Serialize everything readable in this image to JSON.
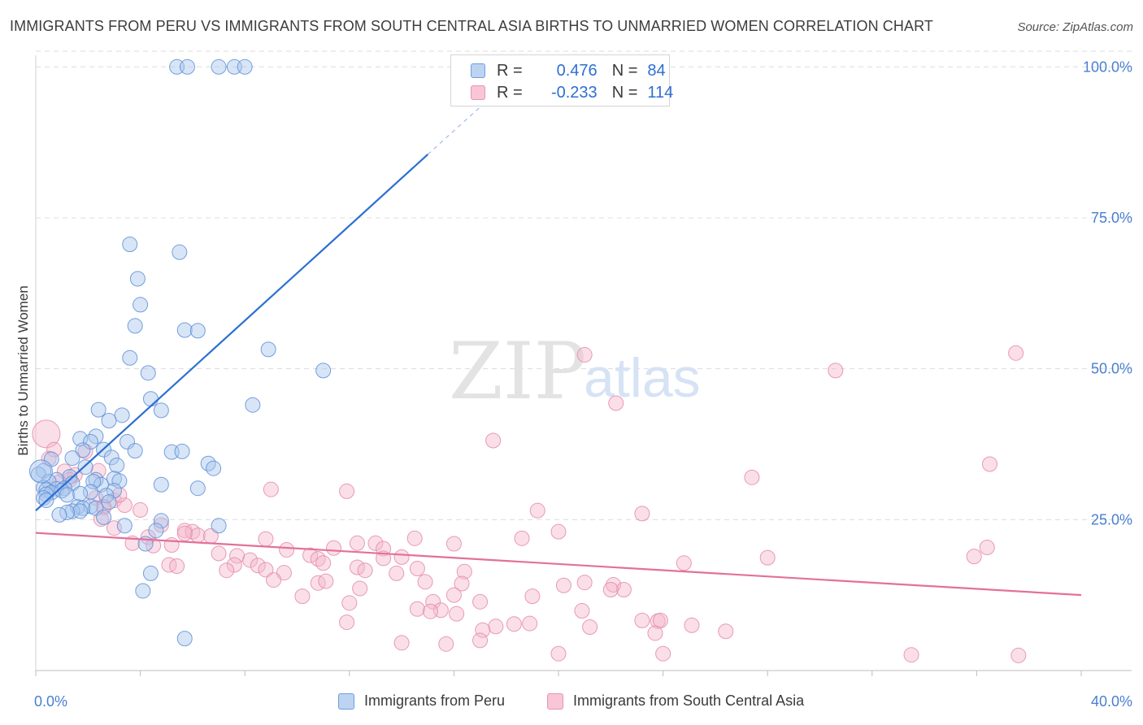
{
  "title": "IMMIGRANTS FROM PERU VS IMMIGRANTS FROM SOUTH CENTRAL ASIA BIRTHS TO UNMARRIED WOMEN CORRELATION CHART",
  "source": "Source: ZipAtlas.com",
  "watermark": {
    "zip": "ZIP",
    "atlas": "atlas"
  },
  "legend": {
    "r_label": "R =",
    "n_label": "N =",
    "peru": {
      "r": "0.476",
      "n": "84"
    },
    "sca": {
      "r": "-0.233",
      "n": "114"
    }
  },
  "colors": {
    "blue_fill": "#a9c6ee",
    "blue_stroke": "#5d8fd6",
    "blue_line": "#2a6fd2",
    "pink_fill": "#f5b7cb",
    "pink_stroke": "#e58aab",
    "pink_line": "#e4709a",
    "axis_text": "#4a7fd0",
    "grid": "#dcdcdc"
  },
  "chart_data": {
    "type": "scatter",
    "title": "IMMIGRANTS FROM PERU VS IMMIGRANTS FROM SOUTH CENTRAL ASIA BIRTHS TO UNMARRIED WOMEN CORRELATION CHART",
    "xlabel": "",
    "ylabel": "Births to Unmarried Women",
    "xlim": [
      0,
      40
    ],
    "ylim": [
      0,
      103
    ],
    "x_tick_labels": [
      "0.0%",
      "40.0%"
    ],
    "y_ticks": [
      25,
      50,
      75,
      100
    ],
    "y_tick_labels": [
      "25.0%",
      "50.0%",
      "75.0%",
      "100.0%"
    ],
    "grid": true,
    "legend_position": "top-center",
    "series": [
      {
        "name": "Immigrants from Peru",
        "color": "blue",
        "r": 0.476,
        "n": 84,
        "trend": {
          "x0": 0,
          "y0": 26.5,
          "x1": 15,
          "y1": 85.5,
          "dash_to_x": 17.5,
          "dash_to_y": 95.3
        },
        "points": [
          [
            5.4,
            100
          ],
          [
            5.8,
            100
          ],
          [
            7.0,
            100
          ],
          [
            7.6,
            100
          ],
          [
            8.0,
            100
          ],
          [
            3.6,
            70.6
          ],
          [
            5.5,
            69.3
          ],
          [
            3.9,
            64.9
          ],
          [
            4.0,
            60.6
          ],
          [
            3.8,
            57.1
          ],
          [
            5.7,
            56.4
          ],
          [
            6.2,
            56.3
          ],
          [
            8.9,
            53.2
          ],
          [
            3.6,
            51.8
          ],
          [
            4.3,
            49.3
          ],
          [
            11.0,
            49.7
          ],
          [
            4.4,
            45.0
          ],
          [
            8.3,
            44.0
          ],
          [
            4.8,
            43.1
          ],
          [
            2.4,
            43.2
          ],
          [
            3.3,
            42.3
          ],
          [
            2.8,
            41.4
          ],
          [
            1.7,
            38.4
          ],
          [
            2.3,
            38.8
          ],
          [
            2.1,
            37.9
          ],
          [
            3.5,
            37.9
          ],
          [
            3.8,
            36.4
          ],
          [
            5.2,
            36.2
          ],
          [
            5.6,
            36.3
          ],
          [
            2.6,
            36.6
          ],
          [
            1.8,
            36.5
          ],
          [
            1.4,
            35.2
          ],
          [
            2.9,
            35.3
          ],
          [
            0.6,
            35.0
          ],
          [
            6.6,
            34.3
          ],
          [
            3.1,
            34.0
          ],
          [
            1.9,
            33.7
          ],
          [
            6.8,
            33.5
          ],
          [
            0.3,
            33.1
          ],
          [
            0.1,
            32.5
          ],
          [
            1.3,
            32.1
          ],
          [
            0.8,
            31.6
          ],
          [
            2.3,
            31.6
          ],
          [
            3.0,
            31.8
          ],
          [
            0.5,
            31.3
          ],
          [
            1.4,
            31.0
          ],
          [
            2.5,
            30.8
          ],
          [
            3.2,
            31.4
          ],
          [
            2.2,
            31.3
          ],
          [
            0.3,
            30.3
          ],
          [
            0.8,
            30.1
          ],
          [
            1.1,
            30.2
          ],
          [
            4.8,
            30.8
          ],
          [
            6.2,
            30.2
          ],
          [
            0.4,
            29.9
          ],
          [
            0.6,
            29.5
          ],
          [
            1.0,
            29.8
          ],
          [
            2.1,
            29.6
          ],
          [
            3.0,
            29.8
          ],
          [
            0.4,
            29.2
          ],
          [
            1.2,
            29.1
          ],
          [
            1.7,
            29.3
          ],
          [
            2.7,
            29.0
          ],
          [
            0.3,
            28.6
          ],
          [
            0.4,
            28.2
          ],
          [
            2.8,
            27.9
          ],
          [
            2.1,
            27.2
          ],
          [
            1.6,
            27.1
          ],
          [
            1.8,
            26.9
          ],
          [
            1.4,
            26.4
          ],
          [
            1.7,
            26.4
          ],
          [
            2.3,
            26.9
          ],
          [
            1.2,
            26.2
          ],
          [
            0.9,
            25.8
          ],
          [
            2.6,
            25.4
          ],
          [
            4.8,
            24.8
          ],
          [
            3.4,
            24.0
          ],
          [
            7.0,
            24.0
          ],
          [
            4.6,
            23.2
          ],
          [
            4.2,
            21.0
          ],
          [
            4.4,
            16.1
          ],
          [
            4.1,
            13.2
          ],
          [
            5.7,
            5.3
          ],
          [
            0.2,
            33.0
          ]
        ]
      },
      {
        "name": "Immigrants from South Central Asia",
        "color": "pink",
        "r": -0.233,
        "n": 114,
        "trend": {
          "x0": 0,
          "y0": 22.8,
          "x1": 40,
          "y1": 12.5
        },
        "points": [
          [
            21.0,
            52.3
          ],
          [
            37.5,
            52.6
          ],
          [
            30.6,
            49.7
          ],
          [
            22.2,
            44.3
          ],
          [
            17.5,
            38.1
          ],
          [
            36.5,
            34.2
          ],
          [
            27.4,
            32.0
          ],
          [
            9.0,
            30.0
          ],
          [
            11.9,
            29.7
          ],
          [
            19.2,
            26.5
          ],
          [
            23.2,
            26.0
          ],
          [
            0.4,
            39.2
          ],
          [
            0.7,
            36.6
          ],
          [
            0.5,
            35.1
          ],
          [
            1.1,
            33.0
          ],
          [
            1.5,
            32.4
          ],
          [
            1.3,
            31.6
          ],
          [
            0.9,
            31.2
          ],
          [
            2.3,
            28.6
          ],
          [
            2.6,
            27.2
          ],
          [
            3.0,
            28.2
          ],
          [
            3.4,
            27.4
          ],
          [
            3.2,
            29.1
          ],
          [
            2.6,
            27.0
          ],
          [
            4.0,
            26.6
          ],
          [
            2.5,
            25.1
          ],
          [
            3.0,
            23.6
          ],
          [
            4.8,
            24.1
          ],
          [
            5.7,
            23.2
          ],
          [
            6.0,
            23.0
          ],
          [
            6.2,
            22.4
          ],
          [
            6.7,
            22.3
          ],
          [
            4.3,
            22.1
          ],
          [
            3.7,
            21.1
          ],
          [
            4.5,
            20.7
          ],
          [
            5.7,
            22.7
          ],
          [
            8.8,
            21.8
          ],
          [
            12.3,
            21.1
          ],
          [
            14.5,
            21.9
          ],
          [
            20.0,
            23.0
          ],
          [
            18.6,
            21.9
          ],
          [
            16.0,
            21.0
          ],
          [
            13.0,
            21.1
          ],
          [
            13.3,
            20.2
          ],
          [
            11.4,
            20.3
          ],
          [
            9.6,
            20.0
          ],
          [
            10.5,
            19.1
          ],
          [
            7.0,
            19.4
          ],
          [
            7.7,
            19.0
          ],
          [
            8.2,
            18.3
          ],
          [
            10.8,
            18.5
          ],
          [
            11.0,
            17.8
          ],
          [
            13.3,
            18.6
          ],
          [
            14.0,
            18.8
          ],
          [
            5.1,
            17.5
          ],
          [
            5.4,
            17.3
          ],
          [
            7.6,
            17.5
          ],
          [
            8.5,
            17.4
          ],
          [
            7.3,
            16.6
          ],
          [
            8.8,
            16.7
          ],
          [
            9.5,
            16.2
          ],
          [
            12.3,
            17.1
          ],
          [
            12.6,
            16.6
          ],
          [
            13.8,
            16.1
          ],
          [
            14.6,
            16.9
          ],
          [
            16.4,
            16.4
          ],
          [
            24.8,
            17.8
          ],
          [
            28.0,
            18.7
          ],
          [
            35.9,
            18.9
          ],
          [
            36.4,
            20.4
          ],
          [
            9.1,
            15.0
          ],
          [
            10.8,
            14.5
          ],
          [
            11.1,
            14.8
          ],
          [
            14.9,
            14.7
          ],
          [
            16.3,
            14.4
          ],
          [
            22.1,
            14.2
          ],
          [
            22.5,
            13.4
          ],
          [
            21.0,
            14.6
          ],
          [
            20.2,
            14.1
          ],
          [
            12.4,
            13.6
          ],
          [
            10.2,
            12.3
          ],
          [
            12.0,
            11.2
          ],
          [
            15.2,
            11.4
          ],
          [
            16.0,
            12.5
          ],
          [
            17.0,
            11.4
          ],
          [
            19.0,
            12.3
          ],
          [
            22.0,
            13.4
          ],
          [
            14.6,
            10.2
          ],
          [
            15.5,
            10.0
          ],
          [
            15.1,
            9.8
          ],
          [
            16.1,
            9.4
          ],
          [
            20.9,
            9.9
          ],
          [
            23.2,
            8.3
          ],
          [
            23.8,
            8.2
          ],
          [
            23.9,
            8.3
          ],
          [
            11.9,
            8.0
          ],
          [
            17.6,
            7.3
          ],
          [
            18.3,
            7.7
          ],
          [
            18.9,
            7.8
          ],
          [
            21.2,
            7.2
          ],
          [
            23.7,
            6.2
          ],
          [
            25.1,
            7.5
          ],
          [
            26.4,
            6.5
          ],
          [
            17.1,
            6.7
          ],
          [
            17.0,
            5.0
          ],
          [
            14.0,
            4.6
          ],
          [
            15.7,
            4.4
          ],
          [
            20.0,
            2.8
          ],
          [
            24.0,
            2.8
          ],
          [
            33.5,
            2.6
          ],
          [
            37.6,
            2.5
          ],
          [
            1.9,
            36.3
          ],
          [
            2.4,
            33.1
          ],
          [
            5.2,
            20.8
          ]
        ]
      }
    ]
  }
}
